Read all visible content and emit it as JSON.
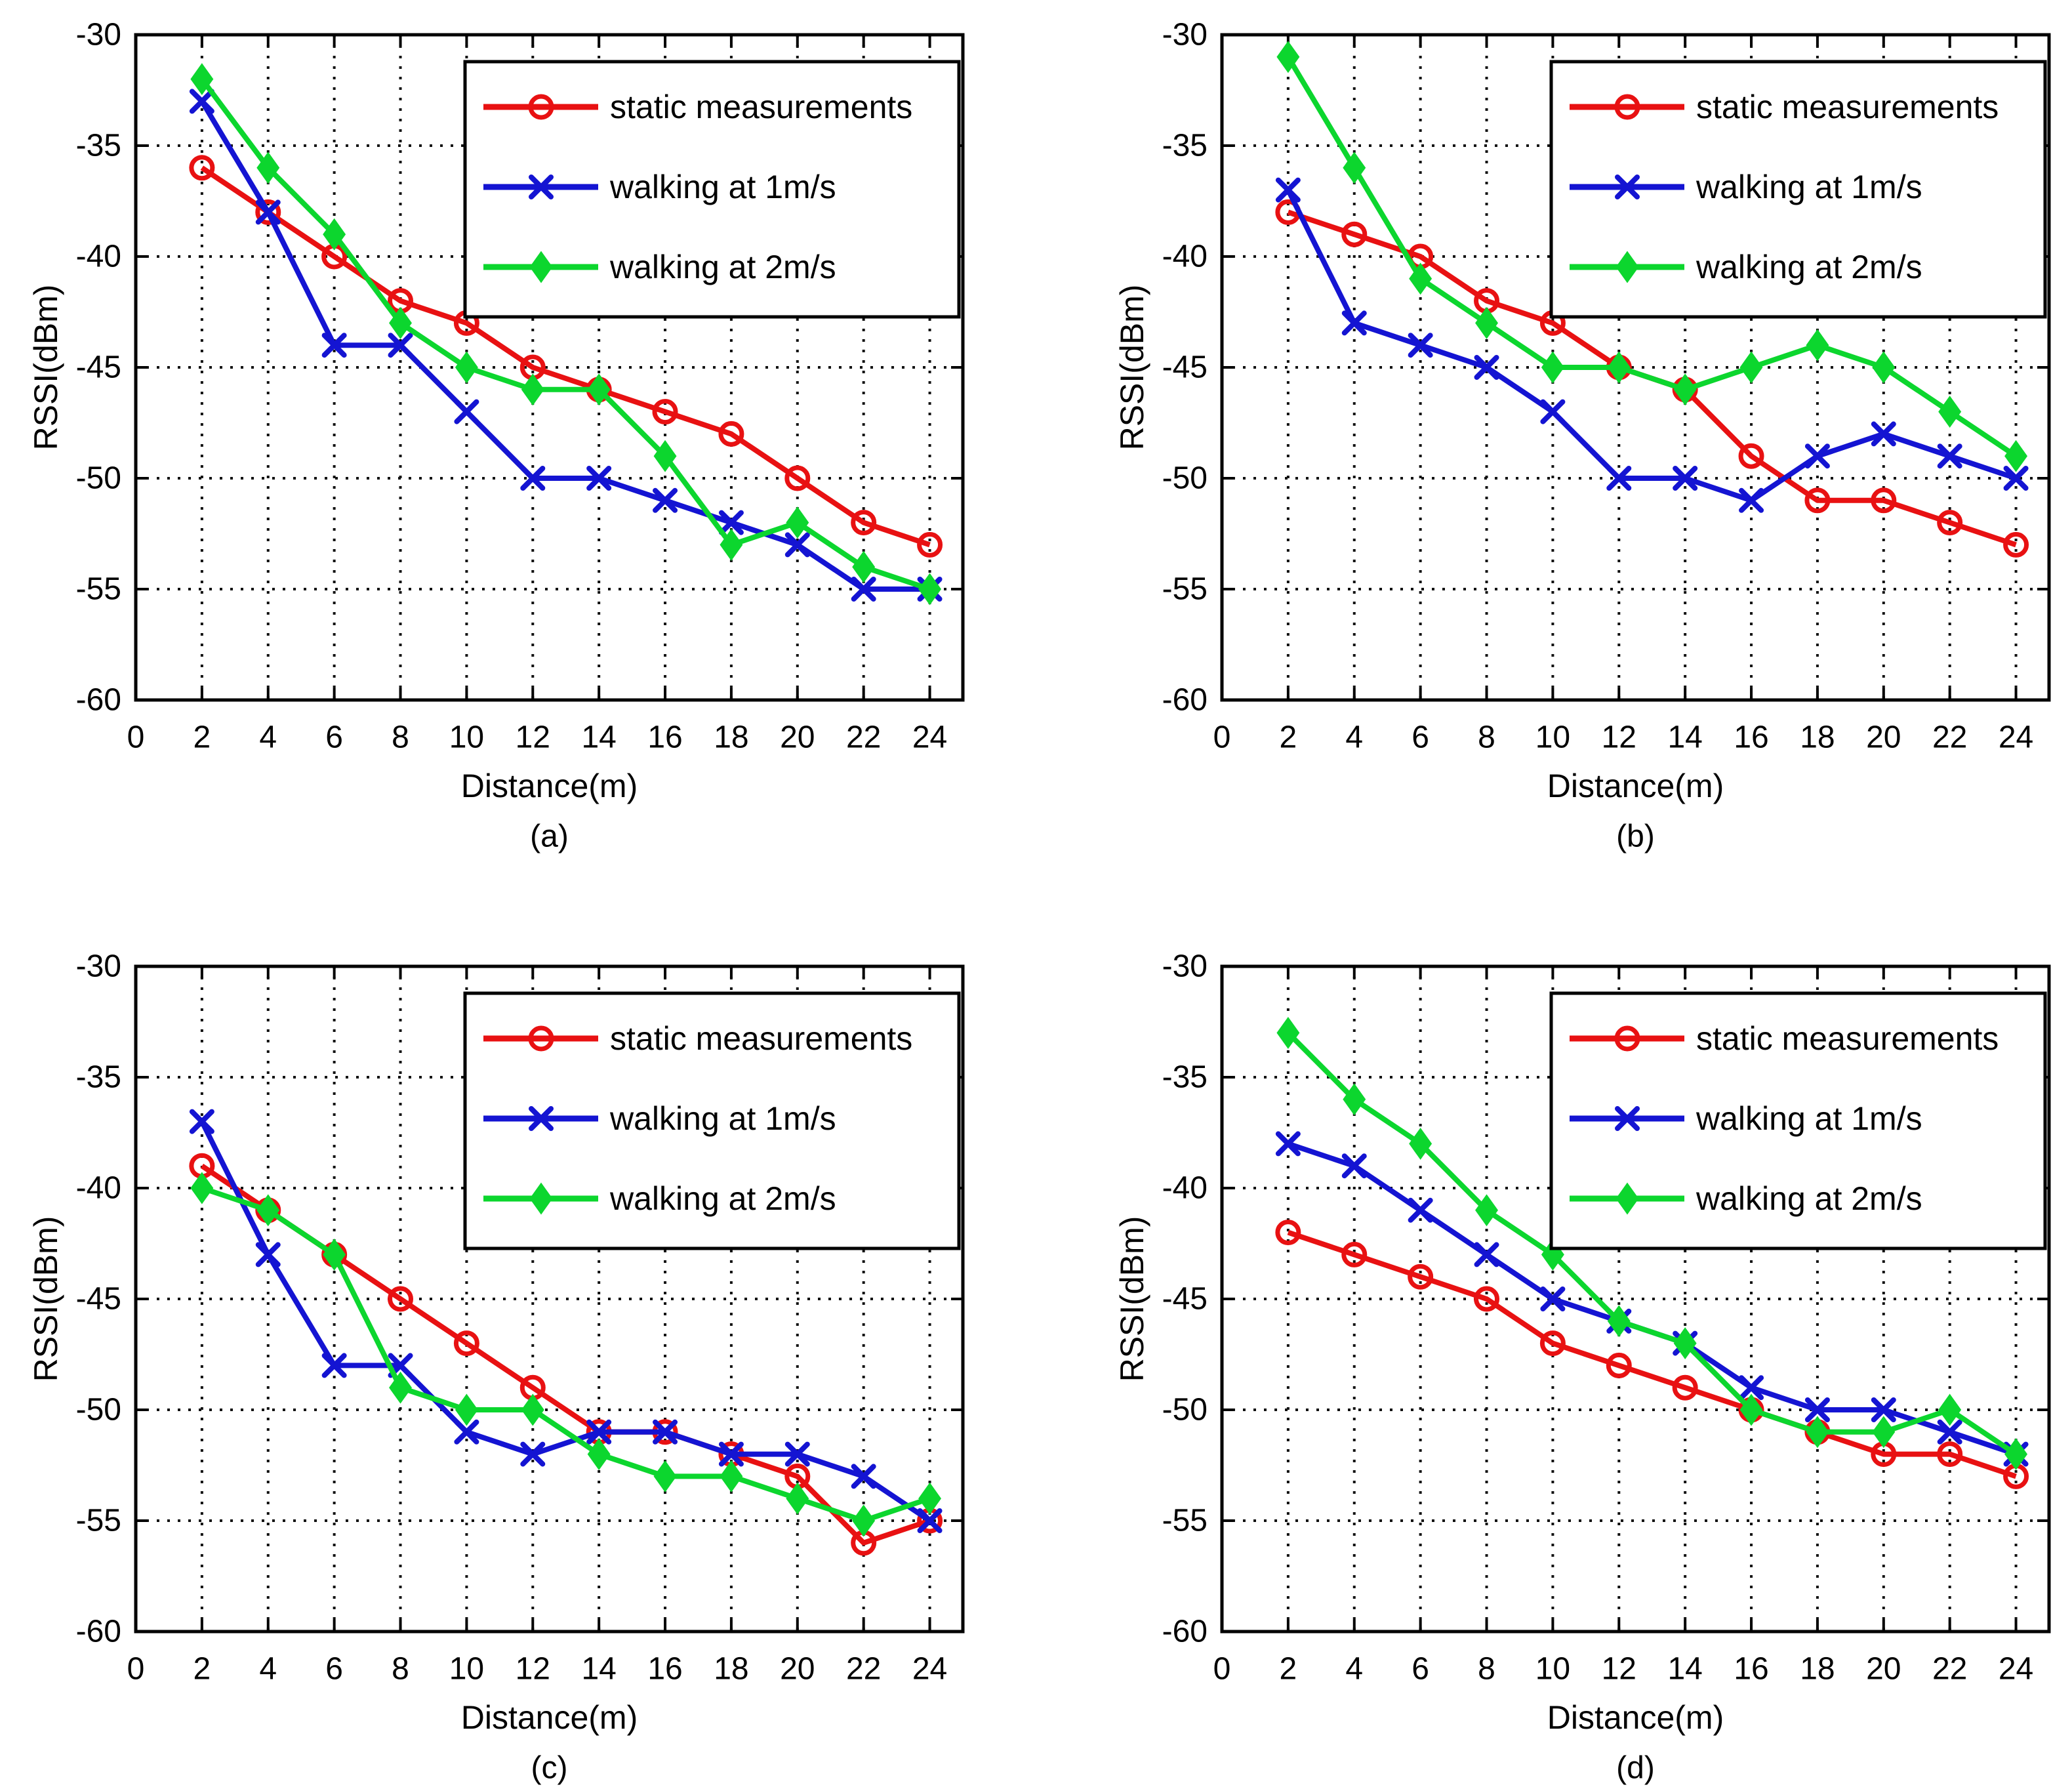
{
  "figure": {
    "background": "#ffffff",
    "text_color": "#000000",
    "grid_color": "#111111",
    "axis_color": "#000000"
  },
  "chart_data": [
    {
      "type": "line",
      "label": "(a)",
      "xlabel": "Distance(m)",
      "ylabel": "RSSI(dBm)",
      "xlim": [
        0,
        25
      ],
      "ylim": [
        -60,
        -30
      ],
      "xticks": [
        0,
        2,
        4,
        6,
        8,
        10,
        12,
        14,
        16,
        18,
        20,
        22,
        24
      ],
      "yticks": [
        -30,
        -35,
        -40,
        -45,
        -50,
        -55,
        -60
      ],
      "grid": true,
      "legend_position": "top-right",
      "x": [
        2,
        4,
        6,
        8,
        10,
        12,
        14,
        16,
        18,
        20,
        22,
        24
      ],
      "series": [
        {
          "name": "static measurements",
          "color": "#e81112",
          "marker": "circle",
          "values": [
            -36,
            -38,
            -40,
            -42,
            -43,
            -45,
            -46,
            -47,
            -48,
            -50,
            -52,
            -53
          ]
        },
        {
          "name": "walking at 1m/s",
          "color": "#1414d2",
          "marker": "x",
          "values": [
            -33,
            -38,
            -44,
            -44,
            -47,
            -50,
            -50,
            -51,
            -52,
            -53,
            -55,
            -55
          ]
        },
        {
          "name": "walking at 2m/s",
          "color": "#0cd62e",
          "marker": "diamond",
          "values": [
            -32,
            -36,
            -39,
            -43,
            -45,
            -46,
            -46,
            -49,
            -53,
            -52,
            -54,
            -55
          ]
        }
      ]
    },
    {
      "type": "line",
      "label": "(b)",
      "xlabel": "Distance(m)",
      "ylabel": "RSSI(dBm)",
      "xlim": [
        0,
        25
      ],
      "ylim": [
        -60,
        -30
      ],
      "xticks": [
        0,
        2,
        4,
        6,
        8,
        10,
        12,
        14,
        16,
        18,
        20,
        22,
        24
      ],
      "yticks": [
        -30,
        -35,
        -40,
        -45,
        -50,
        -55,
        -60
      ],
      "grid": true,
      "legend_position": "top-right",
      "x": [
        2,
        4,
        6,
        8,
        10,
        12,
        14,
        16,
        18,
        20,
        22,
        24
      ],
      "series": [
        {
          "name": "static measurements",
          "color": "#e81112",
          "marker": "circle",
          "values": [
            -38,
            -39,
            -40,
            -42,
            -43,
            -45,
            -46,
            -49,
            -51,
            -51,
            -52,
            -53
          ]
        },
        {
          "name": "walking at 1m/s",
          "color": "#1414d2",
          "marker": "x",
          "values": [
            -37,
            -43,
            -44,
            -45,
            -47,
            -50,
            -50,
            -51,
            -49,
            -48,
            -49,
            -50
          ]
        },
        {
          "name": "walking at 2m/s",
          "color": "#0cd62e",
          "marker": "diamond",
          "values": [
            -31,
            -36,
            -41,
            -43,
            -45,
            -45,
            -46,
            -45,
            -44,
            -45,
            -47,
            -49
          ]
        }
      ]
    },
    {
      "type": "line",
      "label": "(c)",
      "xlabel": "Distance(m)",
      "ylabel": "RSSI(dBm)",
      "xlim": [
        0,
        25
      ],
      "ylim": [
        -60,
        -30
      ],
      "xticks": [
        0,
        2,
        4,
        6,
        8,
        10,
        12,
        14,
        16,
        18,
        20,
        22,
        24
      ],
      "yticks": [
        -30,
        -35,
        -40,
        -45,
        -50,
        -55,
        -60
      ],
      "grid": true,
      "legend_position": "top-right",
      "x": [
        2,
        4,
        6,
        8,
        10,
        12,
        14,
        16,
        18,
        20,
        22,
        24
      ],
      "series": [
        {
          "name": "static measurements",
          "color": "#e81112",
          "marker": "circle",
          "values": [
            -39,
            -41,
            -43,
            -45,
            -47,
            -49,
            -51,
            -51,
            -52,
            -53,
            -56,
            -55
          ]
        },
        {
          "name": "walking at 1m/s",
          "color": "#1414d2",
          "marker": "x",
          "values": [
            -37,
            -43,
            -48,
            -48,
            -51,
            -52,
            -51,
            -51,
            -52,
            -52,
            -53,
            -55
          ]
        },
        {
          "name": "walking at 2m/s",
          "color": "#0cd62e",
          "marker": "diamond",
          "values": [
            -40,
            -41,
            -43,
            -49,
            -50,
            -50,
            -52,
            -53,
            -53,
            -54,
            -55,
            -54
          ]
        }
      ]
    },
    {
      "type": "line",
      "label": "(d)",
      "xlabel": "Distance(m)",
      "ylabel": "RSSI(dBm)",
      "xlim": [
        0,
        25
      ],
      "ylim": [
        -60,
        -30
      ],
      "xticks": [
        0,
        2,
        4,
        6,
        8,
        10,
        12,
        14,
        16,
        18,
        20,
        22,
        24
      ],
      "yticks": [
        -30,
        -35,
        -40,
        -45,
        -50,
        -55,
        -60
      ],
      "grid": true,
      "legend_position": "top-right",
      "x": [
        2,
        4,
        6,
        8,
        10,
        12,
        14,
        16,
        18,
        20,
        22,
        24
      ],
      "series": [
        {
          "name": "static measurements",
          "color": "#e81112",
          "marker": "circle",
          "values": [
            -42,
            -43,
            -44,
            -45,
            -47,
            -48,
            -49,
            -50,
            -51,
            -52,
            -52,
            -53
          ]
        },
        {
          "name": "walking at 1m/s",
          "color": "#1414d2",
          "marker": "x",
          "values": [
            -38,
            -39,
            -41,
            -43,
            -45,
            -46,
            -47,
            -49,
            -50,
            -50,
            -51,
            -52
          ]
        },
        {
          "name": "walking at 2m/s",
          "color": "#0cd62e",
          "marker": "diamond",
          "values": [
            -33,
            -36,
            -38,
            -41,
            -43,
            -46,
            -47,
            -50,
            -51,
            -51,
            -50,
            -52
          ]
        }
      ]
    }
  ]
}
